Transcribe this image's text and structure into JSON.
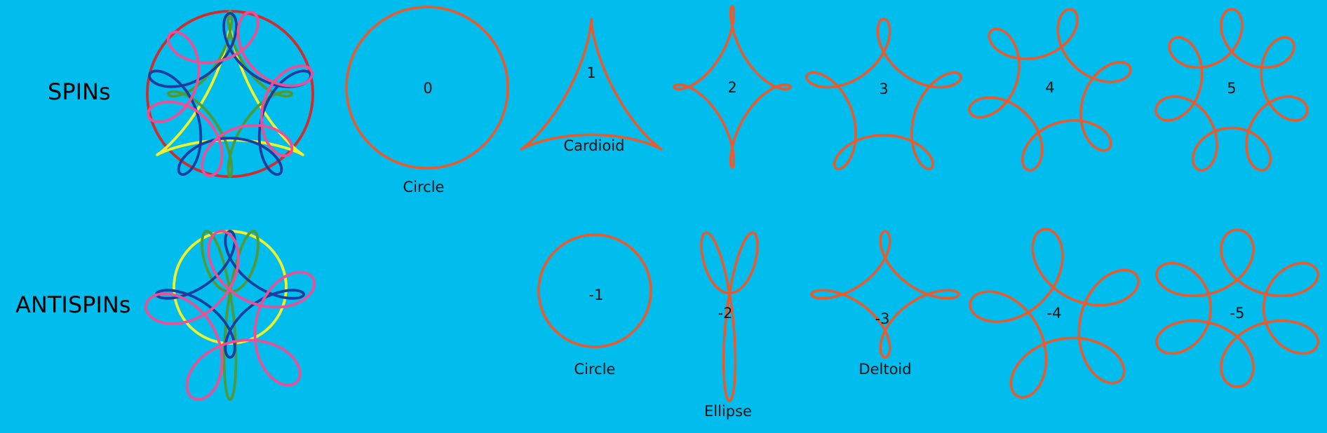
{
  "rows": {
    "spins_label": "SPINs",
    "antispins_label": "ANTISPINs"
  },
  "colors": {
    "background": "#00BDEE",
    "curve": "#EA5A2C",
    "combo_blue": "#1A3E9E",
    "combo_pink": "#EE4E95",
    "combo_yellow": "#F2F22A",
    "combo_green": "#4E9A3A",
    "combo_red": "#D42A2A"
  },
  "spins": [
    {
      "n": "0",
      "name": "Circle"
    },
    {
      "n": "1",
      "name": "Cardioid"
    },
    {
      "n": "2",
      "name": ""
    },
    {
      "n": "3",
      "name": ""
    },
    {
      "n": "4",
      "name": ""
    },
    {
      "n": "5",
      "name": ""
    }
  ],
  "antispins": [
    {
      "n": "-1",
      "name": "Circle"
    },
    {
      "n": "-2",
      "name": "Ellipse"
    },
    {
      "n": "-3",
      "name": "Deltoid"
    },
    {
      "n": "-4",
      "name": ""
    },
    {
      "n": "-5",
      "name": ""
    }
  ]
}
